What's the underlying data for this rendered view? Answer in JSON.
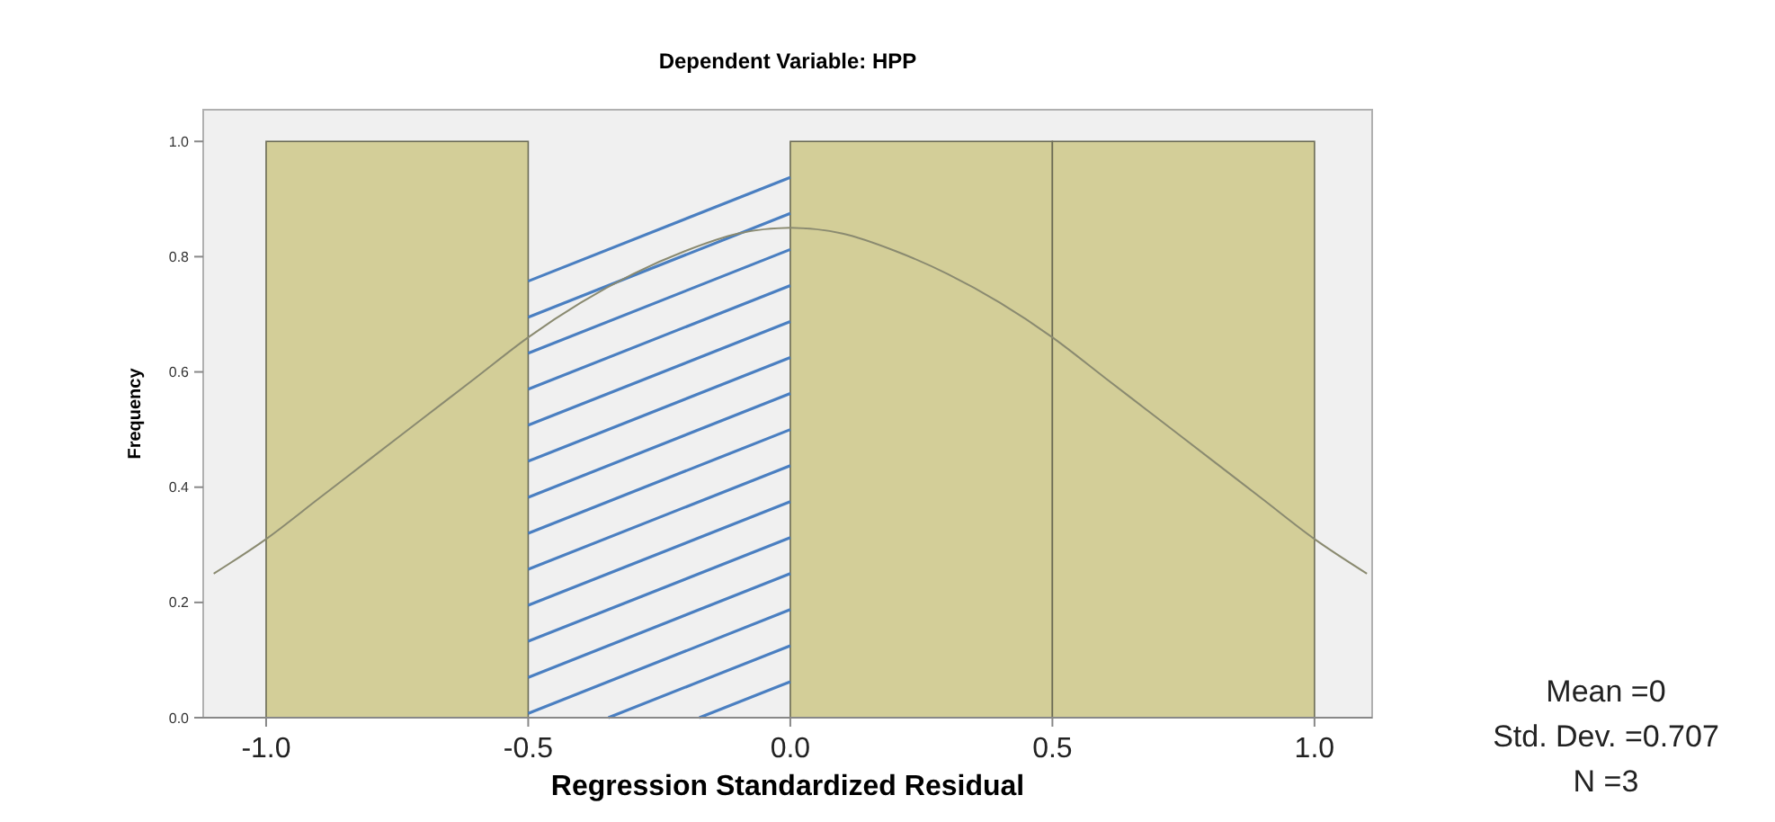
{
  "chart_data": {
    "type": "histogram",
    "title": "Dependent Variable: HPP",
    "xlabel": "Regression Standardized Residual",
    "ylabel": "Frequency",
    "bins": [
      -1.0,
      -0.5,
      0.0,
      0.5,
      1.0
    ],
    "values": [
      1,
      0,
      1,
      1
    ],
    "color": "#d3ce98",
    "series": [
      {
        "type": "line",
        "color": "#8a8a70",
        "x": [
          -1.1,
          -1.0,
          -0.9,
          -0.8,
          -0.7,
          -0.6,
          -0.5,
          -0.4,
          -0.3,
          -0.2,
          -0.1,
          0.0,
          0.1,
          0.2,
          0.3,
          0.4,
          0.5,
          0.6,
          0.7,
          0.8,
          0.9,
          1.0,
          1.1
        ],
        "values": [
          0.25,
          0.31,
          0.38,
          0.45,
          0.52,
          0.59,
          0.66,
          0.72,
          0.77,
          0.81,
          0.84,
          0.85,
          0.84,
          0.81,
          0.77,
          0.72,
          0.66,
          0.59,
          0.52,
          0.45,
          0.38,
          0.31,
          0.25
        ]
      }
    ],
    "xlim": [
      -1.12,
      1.11
    ],
    "ylim": [
      0,
      1.055
    ],
    "xticks": [
      {
        "value": -1,
        "label": "-1.0"
      },
      {
        "value": -0.5,
        "label": "-0.5"
      },
      {
        "value": 0,
        "label": "0.0"
      },
      {
        "value": 0.5,
        "label": "0.5"
      },
      {
        "value": 1,
        "label": "1.0"
      }
    ],
    "yticks": [
      {
        "value": 0,
        "label": "0.0"
      },
      {
        "value": 0.2,
        "label": "0.2"
      },
      {
        "value": 0.4,
        "label": "0.4"
      },
      {
        "value": 0.6,
        "label": "0.6"
      },
      {
        "value": 0.8,
        "label": "0.8"
      },
      {
        "value": 1,
        "label": "1.0"
      }
    ],
    "annotations": [
      "Mean =0",
      "Std. Dev. =0.707",
      "N =3"
    ]
  }
}
